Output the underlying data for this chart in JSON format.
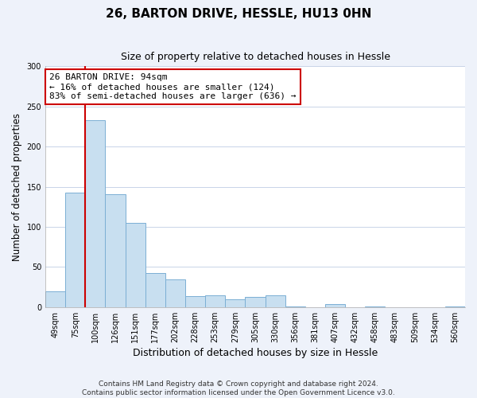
{
  "title": "26, BARTON DRIVE, HESSLE, HU13 0HN",
  "subtitle": "Size of property relative to detached houses in Hessle",
  "xlabel": "Distribution of detached houses by size in Hessle",
  "ylabel": "Number of detached properties",
  "bar_labels": [
    "49sqm",
    "75sqm",
    "100sqm",
    "126sqm",
    "151sqm",
    "177sqm",
    "202sqm",
    "228sqm",
    "253sqm",
    "279sqm",
    "305sqm",
    "330sqm",
    "356sqm",
    "381sqm",
    "407sqm",
    "432sqm",
    "458sqm",
    "483sqm",
    "509sqm",
    "534sqm",
    "560sqm"
  ],
  "bar_heights": [
    20,
    143,
    233,
    141,
    105,
    42,
    35,
    14,
    15,
    10,
    13,
    15,
    1,
    0,
    4,
    0,
    1,
    0,
    0,
    0,
    1
  ],
  "bar_color": "#c8dff0",
  "bar_edge_color": "#7bafd4",
  "vline_color": "#cc0000",
  "annotation_text_line1": "26 BARTON DRIVE: 94sqm",
  "annotation_text_line2": "← 16% of detached houses are smaller (124)",
  "annotation_text_line3": "83% of semi-detached houses are larger (636) →",
  "annotation_box_color": "white",
  "annotation_box_edge": "#cc0000",
  "ylim": [
    0,
    300
  ],
  "yticks": [
    0,
    50,
    100,
    150,
    200,
    250,
    300
  ],
  "footer": "Contains HM Land Registry data © Crown copyright and database right 2024.\nContains public sector information licensed under the Open Government Licence v3.0.",
  "bg_color": "#eef2fa",
  "plot_bg_color": "white",
  "grid_color": "#c8d4e8"
}
